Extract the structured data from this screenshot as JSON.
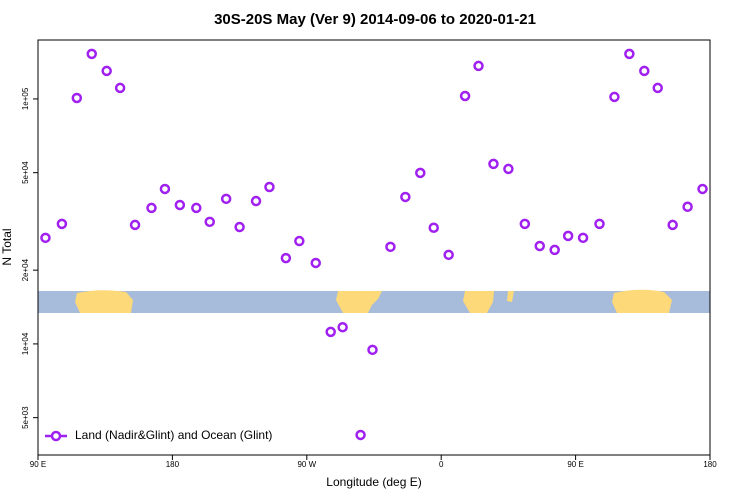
{
  "chart_data": {
    "type": "scatter",
    "title": "30S-20S May (Ver 9)   2014-09-06 to 2020-01-21",
    "x_label": "Longitude (deg E)",
    "y_label": "N Total",
    "log_y": true,
    "legend": "bottomleft",
    "xlim": [
      90,
      540
    ],
    "ylim": [
      3520,
      174000
    ],
    "xticks": [
      {
        "value": 90,
        "label": "90 E"
      },
      180,
      {
        "value": 270,
        "label": "90 W"
      },
      {
        "value": 360,
        "label": "0"
      },
      {
        "value": 450,
        "label": "90 E"
      },
      {
        "value": 540,
        "label": "180"
      }
    ],
    "yticks": [
      {
        "value": 5000,
        "label": "5e+03"
      },
      {
        "value": 10000,
        "label": "1e+04"
      },
      {
        "value": 20000,
        "label": "2e+04"
      },
      {
        "value": 50000,
        "label": "5e+04"
      },
      {
        "value": 100000,
        "label": "1e+05"
      }
    ],
    "series": [
      {
        "name": "Land (Nadir&Glint) and Ocean (Glint)",
        "color": "#a020f0",
        "x": [
          95,
          106,
          116,
          126,
          136,
          145,
          155,
          166,
          175,
          185,
          196,
          205,
          216,
          225,
          236,
          245,
          256,
          265,
          276,
          286,
          294,
          306,
          314,
          326,
          336,
          346,
          355,
          365,
          376,
          385,
          395,
          405,
          416,
          426,
          436,
          445,
          455,
          466,
          476,
          486,
          496,
          505,
          515,
          525,
          535
        ],
        "values": [
          27100,
          30900,
          100900,
          152700,
          130100,
          110900,
          30600,
          35900,
          42900,
          36900,
          35900,
          31500,
          39100,
          30000,
          38300,
          43700,
          22400,
          26300,
          21400,
          11200,
          11700,
          4250,
          9460,
          24900,
          39800,
          49900,
          29800,
          23100,
          102800,
          136400,
          54300,
          51800,
          30900,
          25100,
          24200,
          27600,
          27100,
          30900,
          101900,
          152700,
          130100,
          110900,
          30600,
          36300,
          42900
        ]
      }
    ]
  }
}
